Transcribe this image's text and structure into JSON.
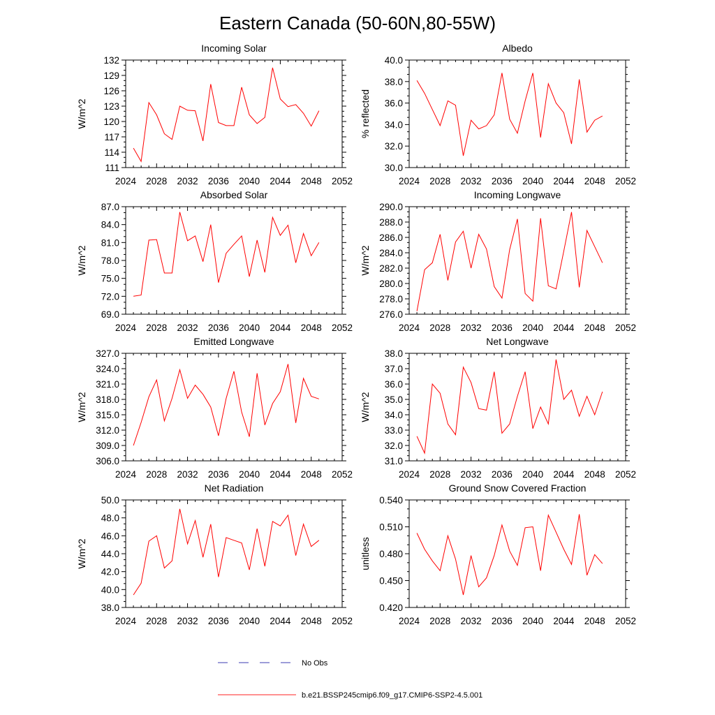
{
  "figure": {
    "title": "Eastern Canada (50-60N,80-55W)"
  },
  "legend": {
    "items": [
      {
        "label": "No Obs",
        "style": "dashed",
        "color": "#3b3bb3"
      },
      {
        "label": "b.e21.BSSP245cmip6.f09_g17.CMIP6-SSP2-4.5.001",
        "style": "solid",
        "color": "#ff2020"
      }
    ],
    "placement": "bottom-center"
  },
  "chart_data": [
    {
      "type": "line",
      "title": "Incoming Solar",
      "ylabel": "W/m^2",
      "xlim": [
        2024,
        2052
      ],
      "ylim": [
        111,
        132
      ],
      "xticks": [
        "2024",
        "2028",
        "2032",
        "2036",
        "2040",
        "2044",
        "2048",
        "2052"
      ],
      "yticks": [
        "111",
        "114",
        "117",
        "120",
        "123",
        "126",
        "129",
        "132"
      ],
      "x": [
        2025,
        2026,
        2027,
        2028,
        2029,
        2030,
        2031,
        2032,
        2033,
        2034,
        2035,
        2036,
        2037,
        2038,
        2039,
        2040,
        2041,
        2042,
        2043,
        2044,
        2045,
        2046,
        2047,
        2048,
        2049
      ],
      "series": [
        {
          "color": "#ff0000",
          "values": [
            114.8,
            112.2,
            123.7,
            121.3,
            117.6,
            116.5,
            123.0,
            122.2,
            122.1,
            116.2,
            127.3,
            119.8,
            119.2,
            119.2,
            126.7,
            121.3,
            119.6,
            120.8,
            130.5,
            124.4,
            122.9,
            123.3,
            121.6,
            119.1,
            122.1
          ]
        }
      ]
    },
    {
      "type": "line",
      "title": "Albedo",
      "ylabel": "% reflected",
      "xlim": [
        2024,
        2052
      ],
      "ylim": [
        30.0,
        40.0
      ],
      "xticks": [
        "2024",
        "2028",
        "2032",
        "2036",
        "2040",
        "2044",
        "2048",
        "2052"
      ],
      "yticks": [
        "30.0",
        "32.0",
        "34.0",
        "36.0",
        "38.0",
        "40.0"
      ],
      "x": [
        2025,
        2026,
        2027,
        2028,
        2029,
        2030,
        2031,
        2032,
        2033,
        2034,
        2035,
        2036,
        2037,
        2038,
        2039,
        2040,
        2041,
        2042,
        2043,
        2044,
        2045,
        2046,
        2047,
        2048,
        2049
      ],
      "series": [
        {
          "color": "#ff0000",
          "values": [
            38.1,
            36.9,
            35.4,
            33.9,
            36.2,
            35.8,
            31.1,
            34.4,
            33.6,
            33.9,
            34.9,
            38.8,
            34.5,
            33.2,
            36.2,
            38.8,
            32.8,
            37.8,
            36.0,
            35.1,
            32.2,
            38.2,
            33.3,
            34.4,
            34.8
          ]
        }
      ]
    },
    {
      "type": "line",
      "title": "Absorbed Solar",
      "ylabel": "W/m^2",
      "xlim": [
        2024,
        2052
      ],
      "ylim": [
        69.0,
        87.0
      ],
      "xticks": [
        "2024",
        "2028",
        "2032",
        "2036",
        "2040",
        "2044",
        "2048",
        "2052"
      ],
      "yticks": [
        "69.0",
        "72.0",
        "75.0",
        "78.0",
        "81.0",
        "84.0",
        "87.0"
      ],
      "x": [
        2025,
        2026,
        2027,
        2028,
        2029,
        2030,
        2031,
        2032,
        2033,
        2034,
        2035,
        2036,
        2037,
        2038,
        2039,
        2040,
        2041,
        2042,
        2043,
        2044,
        2045,
        2046,
        2047,
        2048,
        2049
      ],
      "series": [
        {
          "color": "#ff0000",
          "values": [
            72.0,
            72.2,
            81.4,
            81.5,
            75.9,
            75.9,
            86.1,
            81.3,
            82.1,
            77.8,
            84.0,
            74.3,
            79.2,
            80.7,
            82.1,
            75.3,
            81.4,
            76.0,
            85.2,
            82.2,
            83.9,
            77.6,
            82.5,
            78.8,
            81.0
          ]
        }
      ]
    },
    {
      "type": "line",
      "title": "Incoming Longwave",
      "ylabel": "W/m^2",
      "xlim": [
        2024,
        2052
      ],
      "ylim": [
        276.0,
        290.0
      ],
      "xticks": [
        "2024",
        "2028",
        "2032",
        "2036",
        "2040",
        "2044",
        "2048",
        "2052"
      ],
      "yticks": [
        "276.0",
        "278.0",
        "280.0",
        "282.0",
        "284.0",
        "286.0",
        "288.0",
        "290.0"
      ],
      "x": [
        2025,
        2026,
        2027,
        2028,
        2029,
        2030,
        2031,
        2032,
        2033,
        2034,
        2035,
        2036,
        2037,
        2038,
        2039,
        2040,
        2041,
        2042,
        2043,
        2044,
        2045,
        2046,
        2047,
        2048,
        2049
      ],
      "series": [
        {
          "color": "#ff0000",
          "values": [
            276.4,
            281.8,
            282.7,
            286.4,
            280.4,
            285.4,
            286.8,
            282.0,
            286.4,
            284.5,
            279.6,
            278.1,
            284.4,
            288.4,
            278.7,
            277.7,
            288.5,
            279.7,
            279.3,
            284.2,
            289.3,
            279.5,
            286.9,
            284.8,
            282.7
          ]
        }
      ]
    },
    {
      "type": "line",
      "title": "Emitted Longwave",
      "ylabel": "W/m^2",
      "xlim": [
        2024,
        2052
      ],
      "ylim": [
        306.0,
        327.0
      ],
      "xticks": [
        "2024",
        "2028",
        "2032",
        "2036",
        "2040",
        "2044",
        "2048",
        "2052"
      ],
      "yticks": [
        "306.0",
        "309.0",
        "312.0",
        "315.0",
        "318.0",
        "321.0",
        "324.0",
        "327.0"
      ],
      "x": [
        2025,
        2026,
        2027,
        2028,
        2029,
        2030,
        2031,
        2032,
        2033,
        2034,
        2035,
        2036,
        2037,
        2038,
        2039,
        2040,
        2041,
        2042,
        2043,
        2044,
        2045,
        2046,
        2047,
        2048,
        2049
      ],
      "series": [
        {
          "color": "#ff0000",
          "values": [
            309.0,
            313.5,
            318.5,
            321.8,
            313.8,
            318.2,
            323.8,
            318.2,
            320.8,
            319.0,
            316.5,
            310.9,
            318.2,
            323.5,
            315.5,
            310.7,
            323.1,
            313.0,
            317.2,
            319.5,
            324.9,
            313.4,
            322.1,
            318.6,
            318.1
          ]
        }
      ]
    },
    {
      "type": "line",
      "title": "Net Longwave",
      "ylabel": "W/m^2",
      "xlim": [
        2024,
        2052
      ],
      "ylim": [
        31.0,
        38.0
      ],
      "xticks": [
        "2024",
        "2028",
        "2032",
        "2036",
        "2040",
        "2044",
        "2048",
        "2052"
      ],
      "yticks": [
        "31.0",
        "32.0",
        "33.0",
        "34.0",
        "35.0",
        "36.0",
        "37.0",
        "38.0"
      ],
      "x": [
        2025,
        2026,
        2027,
        2028,
        2029,
        2030,
        2031,
        2032,
        2033,
        2034,
        2035,
        2036,
        2037,
        2038,
        2039,
        2040,
        2041,
        2042,
        2043,
        2044,
        2045,
        2046,
        2047,
        2048,
        2049
      ],
      "series": [
        {
          "color": "#ff0000",
          "values": [
            32.6,
            31.5,
            36.0,
            35.4,
            33.4,
            32.7,
            37.1,
            36.1,
            34.4,
            34.3,
            36.8,
            32.8,
            33.4,
            35.2,
            36.8,
            33.1,
            34.5,
            33.4,
            37.6,
            35.0,
            35.6,
            33.9,
            35.2,
            34.0,
            35.5
          ]
        }
      ]
    },
    {
      "type": "line",
      "title": "Net Radiation",
      "ylabel": "W/m^2",
      "xlim": [
        2024,
        2052
      ],
      "ylim": [
        38.0,
        50.0
      ],
      "xticks": [
        "2024",
        "2028",
        "2032",
        "2036",
        "2040",
        "2044",
        "2048",
        "2052"
      ],
      "yticks": [
        "38.0",
        "40.0",
        "42.0",
        "44.0",
        "46.0",
        "48.0",
        "50.0"
      ],
      "x": [
        2025,
        2026,
        2027,
        2028,
        2029,
        2030,
        2031,
        2032,
        2033,
        2034,
        2035,
        2036,
        2037,
        2038,
        2039,
        2040,
        2041,
        2042,
        2043,
        2044,
        2045,
        2046,
        2047,
        2048,
        2049
      ],
      "series": [
        {
          "color": "#ff0000",
          "values": [
            39.4,
            40.7,
            45.4,
            46.0,
            42.4,
            43.2,
            49.0,
            45.1,
            47.7,
            43.6,
            47.3,
            41.4,
            45.8,
            45.5,
            45.2,
            42.2,
            46.8,
            42.6,
            47.6,
            47.1,
            48.3,
            43.8,
            47.3,
            44.8,
            45.5
          ]
        }
      ]
    },
    {
      "type": "line",
      "title": "Ground Snow Covered Fraction",
      "ylabel": "unitless",
      "xlim": [
        2024,
        2052
      ],
      "ylim": [
        0.42,
        0.54
      ],
      "xticks": [
        "2024",
        "2028",
        "2032",
        "2036",
        "2040",
        "2044",
        "2048",
        "2052"
      ],
      "yticks": [
        "0.420",
        "0.450",
        "0.480",
        "0.510",
        "0.540"
      ],
      "x": [
        2025,
        2026,
        2027,
        2028,
        2029,
        2030,
        2031,
        2032,
        2033,
        2034,
        2035,
        2036,
        2037,
        2038,
        2039,
        2040,
        2041,
        2042,
        2043,
        2044,
        2045,
        2046,
        2047,
        2048,
        2049
      ],
      "series": [
        {
          "color": "#ff0000",
          "values": [
            0.503,
            0.485,
            0.472,
            0.461,
            0.5,
            0.474,
            0.434,
            0.478,
            0.443,
            0.453,
            0.478,
            0.512,
            0.483,
            0.467,
            0.509,
            0.51,
            0.461,
            0.523,
            0.504,
            0.485,
            0.468,
            0.524,
            0.456,
            0.479,
            0.469
          ]
        }
      ]
    }
  ]
}
